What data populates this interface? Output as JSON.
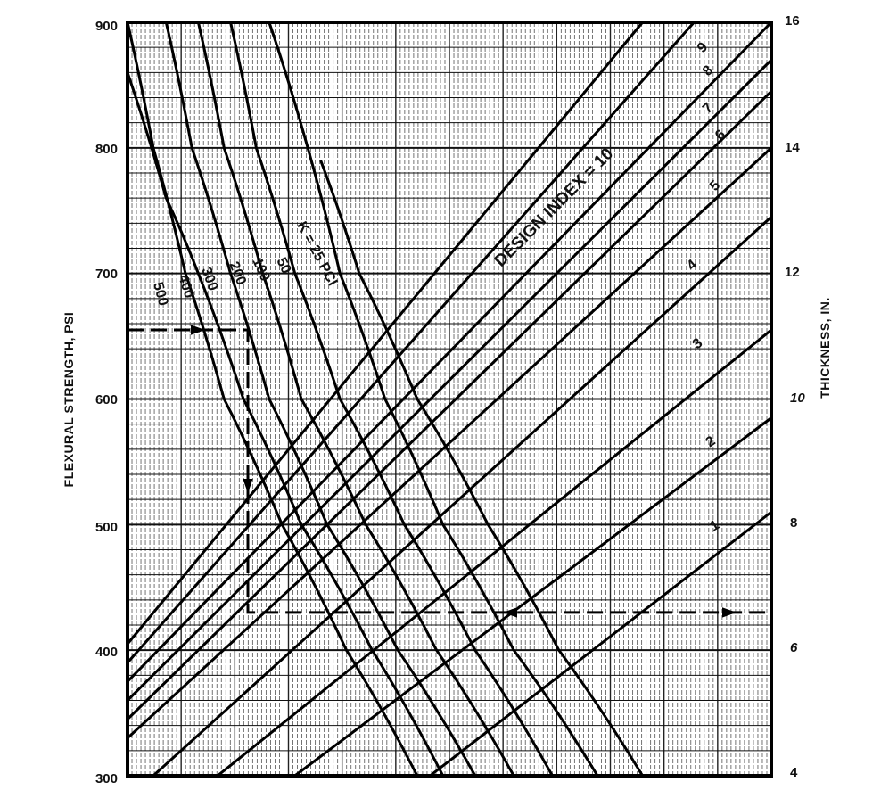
{
  "chart_data": {
    "type": "line",
    "title": "",
    "left_axis": {
      "label": "FLEXURAL STRENGTH, PSI",
      "min": 300,
      "max": 900,
      "ticks": [
        300,
        400,
        500,
        600,
        700,
        800,
        900
      ]
    },
    "right_axis": {
      "label": "THICKNESS, IN.",
      "min": 4,
      "max": 16,
      "ticks": [
        4,
        6,
        8,
        10,
        12,
        14,
        16
      ]
    },
    "grid": true,
    "k_curves": {
      "label_prefix": "k = ",
      "unit": "PCI",
      "series": [
        {
          "name": "500",
          "points_psi": [
            [
              0.0,
              900
            ],
            [
              0.04,
              800
            ],
            [
              0.09,
              700
            ],
            [
              0.15,
              600
            ],
            [
              0.24,
              500
            ],
            [
              0.34,
              400
            ],
            [
              0.45,
              300
            ]
          ]
        },
        {
          "name": "400",
          "points_psi": [
            [
              0.0,
              860
            ],
            [
              0.06,
              760
            ],
            [
              0.11,
              700
            ],
            [
              0.18,
              600
            ],
            [
              0.27,
              500
            ],
            [
              0.38,
              400
            ],
            [
              0.49,
              300
            ]
          ]
        },
        {
          "name": "300",
          "points_psi": [
            [
              0.06,
              900
            ],
            [
              0.1,
              800
            ],
            [
              0.16,
              700
            ],
            [
              0.22,
              600
            ],
            [
              0.31,
              500
            ],
            [
              0.42,
              400
            ],
            [
              0.54,
              300
            ]
          ]
        },
        {
          "name": "200",
          "points_psi": [
            [
              0.11,
              900
            ],
            [
              0.15,
              800
            ],
            [
              0.21,
              700
            ],
            [
              0.27,
              600
            ],
            [
              0.37,
              500
            ],
            [
              0.48,
              400
            ],
            [
              0.6,
              300
            ]
          ]
        },
        {
          "name": "100",
          "points_psi": [
            [
              0.16,
              900
            ],
            [
              0.2,
              800
            ],
            [
              0.26,
              700
            ],
            [
              0.33,
              600
            ],
            [
              0.43,
              500
            ],
            [
              0.54,
              400
            ],
            [
              0.66,
              300
            ]
          ]
        },
        {
          "name": "50",
          "points_psi": [
            [
              0.22,
              900
            ],
            [
              0.28,
              800
            ],
            [
              0.33,
              700
            ],
            [
              0.4,
              600
            ],
            [
              0.49,
              500
            ],
            [
              0.6,
              400
            ],
            [
              0.73,
              300
            ]
          ]
        },
        {
          "name": "25",
          "points_psi": [
            [
              0.3,
              790
            ],
            [
              0.36,
              700
            ],
            [
              0.45,
              600
            ],
            [
              0.56,
              500
            ],
            [
              0.67,
              400
            ],
            [
              0.8,
              300
            ]
          ]
        }
      ]
    },
    "design_index_lines": {
      "title": "DESIGN INDEX = 10",
      "series": [
        {
          "name": "1",
          "start_psi": 300,
          "start_x": 0.47,
          "end_in": 8.2
        },
        {
          "name": "2",
          "start_psi": 300,
          "start_x": 0.26,
          "end_in": 9.7
        },
        {
          "name": "3",
          "start_psi": 300,
          "start_x": 0.14,
          "end_in": 11.1
        },
        {
          "name": "4",
          "start_psi": 300,
          "start_x": 0.04,
          "end_in": 12.9
        },
        {
          "name": "5",
          "start_psi": 330,
          "start_x": 0.0,
          "end_in": 14.0
        },
        {
          "name": "6",
          "start_psi": 345,
          "start_x": 0.0,
          "end_in": 14.9
        },
        {
          "name": "7",
          "start_psi": 360,
          "start_x": 0.0,
          "end_in": 15.4
        },
        {
          "name": "8",
          "start_psi": 375,
          "start_x": 0.0,
          "end_in": 16.0
        },
        {
          "name": "9",
          "start_psi": 390,
          "start_x": 0.0,
          "end_x": 0.88,
          "end_in": 16.0
        },
        {
          "name": "10",
          "start_psi": 405,
          "start_x": 0.0,
          "end_x": 0.8,
          "end_in": 16.0
        }
      ]
    },
    "example_path": {
      "style": "dashed",
      "flexural_strength_psi": 655,
      "k_pci": 200,
      "design_index": 3,
      "thickness_in": 6.6
    }
  },
  "labels": {
    "left_axis_title": "FLEXURAL STRENGTH, PSI",
    "right_axis_title": "THICKNESS, IN.",
    "left_ticks": [
      "900",
      "800",
      "700",
      "600",
      "500",
      "400",
      "300"
    ],
    "right_ticks": [
      "16",
      "14",
      "12",
      "10",
      "8",
      "6",
      "4"
    ],
    "k_labels": [
      "500",
      "400",
      "300",
      "200",
      "100",
      "50",
      "K = 25 PCI"
    ],
    "di_labels": [
      "1",
      "2",
      "3",
      "4",
      "5",
      "6",
      "7",
      "8",
      "9"
    ],
    "di_title": "DESIGN INDEX = 10"
  }
}
